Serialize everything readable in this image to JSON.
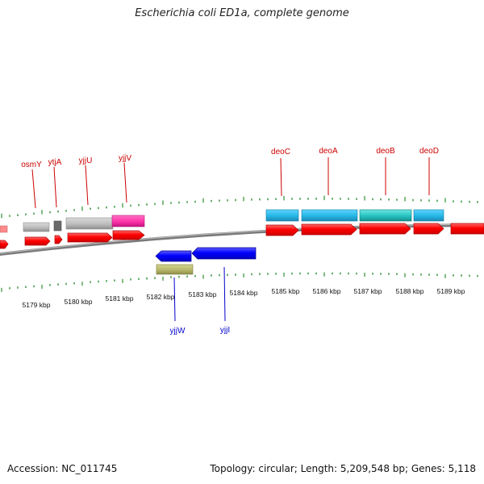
{
  "title": "Escherichia coli ED1a, complete genome",
  "footer": {
    "accession": "Accession: NC_011745",
    "summary": "Topology: circular; Length: 5,209,548 bp; Genes: 5,118"
  },
  "scale": {
    "labels": [
      "5179 kbp",
      "5180 kbp",
      "5181 kbp",
      "5182 kbp",
      "5183 kbp",
      "5184 kbp",
      "5185 kbp",
      "5186 kbp",
      "5187 kbp",
      "5188 kbp",
      "5189 kbp"
    ]
  },
  "labels_top": [
    "osmY",
    "ytjA",
    "yjjU",
    "yjjV",
    "deoC",
    "deoA",
    "deoB",
    "deoD"
  ],
  "labels_bottom": [
    "yjjW",
    "yjjI"
  ],
  "colors": {
    "backbone": "#7f7f7f",
    "forward_gene": "#ff0000",
    "reverse_gene": "#0000ff",
    "label_red": "#cc0000",
    "label_blue": "#0000cc",
    "tick_green": "#2f8f2f",
    "cog_gray": "#bdbdbd",
    "cog_magenta": "#ff33aa",
    "cog_blue": "#24b6e6",
    "cog_teal": "#25c3c0",
    "cog_olive": "#b8b86a"
  }
}
